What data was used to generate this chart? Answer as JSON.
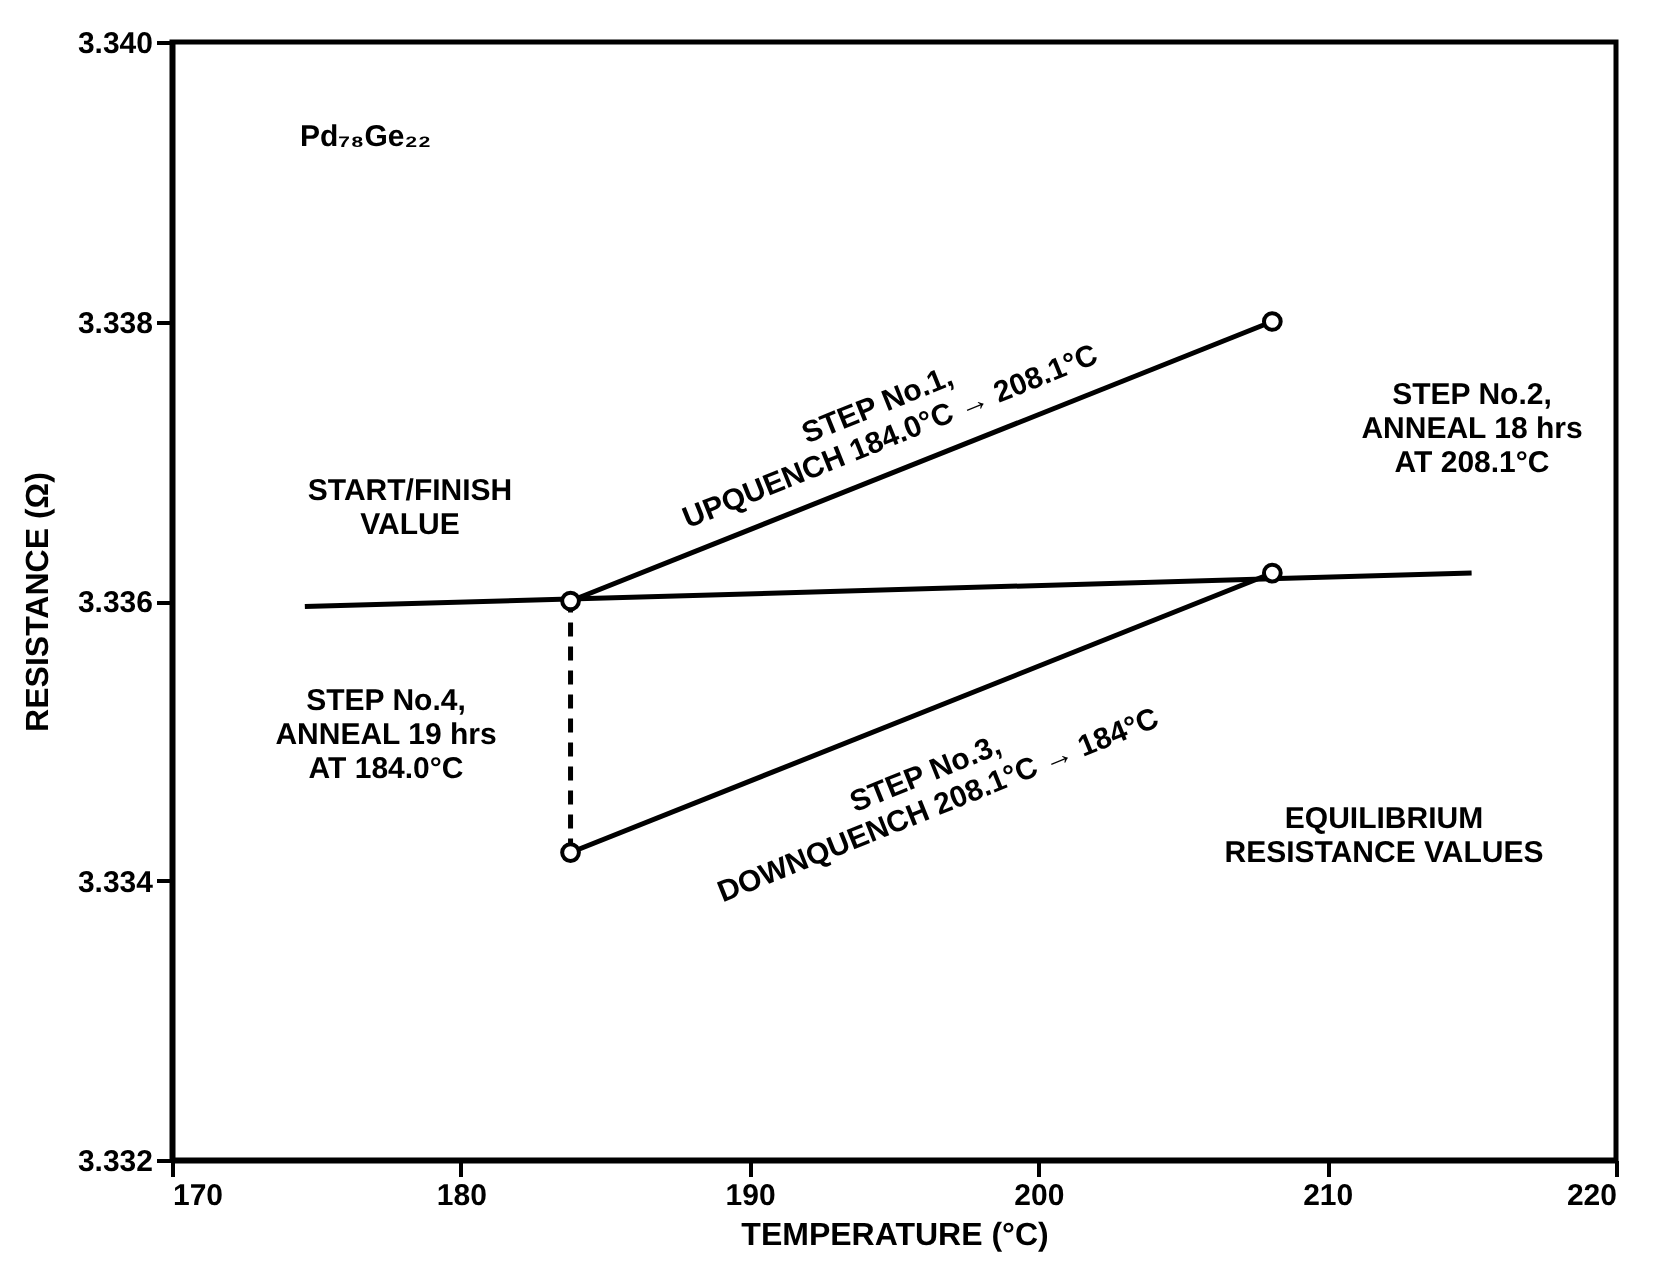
{
  "chart_data": {
    "type": "line",
    "xlabel": "TEMPERATURE (°C)",
    "ylabel": "RESISTANCE (Ω)",
    "xlim": [
      170,
      220
    ],
    "xticks": [
      170,
      180,
      190,
      200,
      210,
      220
    ],
    "ylim": [
      3.332,
      3.34
    ],
    "yticks": [
      3.332,
      3.334,
      3.336,
      3.338,
      {
        "value": 3.34,
        "label": "3.340"
      }
    ],
    "grid": false,
    "marker": "none",
    "series": [
      {
        "color": "#000000",
        "line_style": "solid",
        "x": [
          174.6,
          215.0
        ],
        "values": [
          3.33596,
          3.3362
        ]
      },
      {
        "color": "#000000",
        "line_style": "solid",
        "x": [
          183.8,
          208.1
        ],
        "values": [
          3.336,
          3.338
        ]
      },
      {
        "color": "#000000",
        "line_style": "solid",
        "x": [
          208.1,
          183.8
        ],
        "values": [
          3.3362,
          3.3342
        ]
      },
      {
        "color": "#000000",
        "line_style": "dashed",
        "x": [
          183.8,
          183.8
        ],
        "values": [
          3.3342,
          3.336
        ]
      },
      {
        "type": "scatter",
        "color": "#000000",
        "marker": "circle",
        "x": [
          183.8,
          208.1,
          208.1,
          183.8
        ],
        "values": [
          3.336,
          3.338,
          3.3362,
          3.3342
        ]
      }
    ],
    "annotations": [
      "Pd₇₈Ge₂₂",
      "START/FINISH\nVALUE",
      "STEP No.1,\nUPQUENCH 184.0°C → 208.1°C",
      "STEP No.2,\nANNEAL 18 hrs\nAT 208.1°C",
      "STEP No.3,\nDOWNQUENCH 208.1°C → 184°C",
      "STEP No.4,\nANNEAL 19 hrs\nAT 184.0°C",
      "EQUILIBRIUM\nRESISTANCE VALUES"
    ]
  }
}
